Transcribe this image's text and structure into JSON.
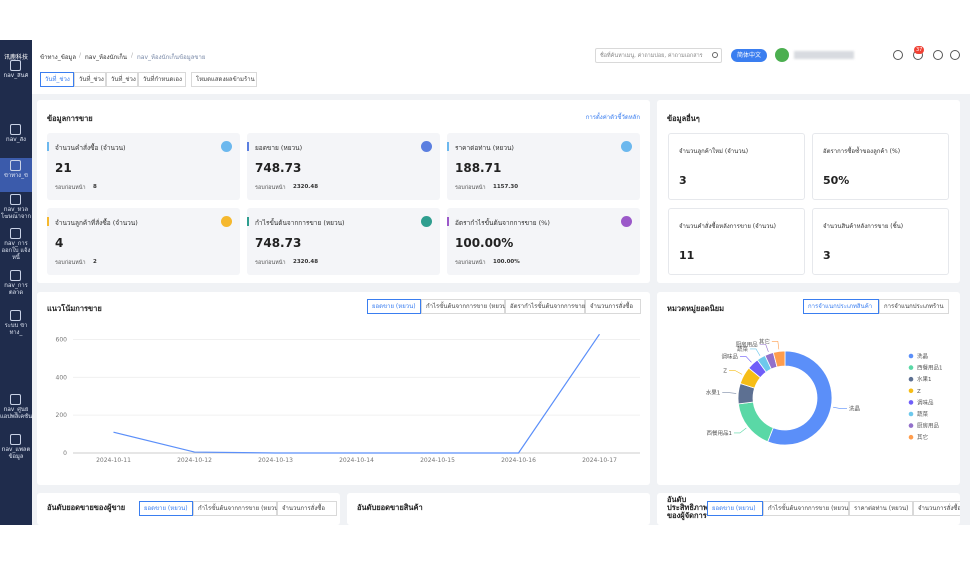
{
  "sidebar": {
    "logo": "讯鹿科技",
    "items": [
      "nav_สินค้",
      "nav_สั่ง",
      "ข้าทาง_ข้",
      "nav_หวล โฆษณาจาก",
      "nav_การ ออกใบ แจ้งหนี้",
      "nav_การ ตลาด",
      "ระบบ ข้าทาง_",
      "nav_ศูนย์ แอปพลิเคชัน",
      "nav_แพลต ข้อมูล"
    ]
  },
  "header": {
    "breadcrumb": [
      "ข้าทาง_ข้อมูล",
      "nav_ห้องนักเก็น",
      "nav_ห้องนักเก็นข้อมูลขาย"
    ],
    "search_placeholder": "ชื่อที่ค้นหาเมนู, ค่าถามบ่อย, ค่าถามเอกสาร",
    "language": "简体中文",
    "badge": "37"
  },
  "date_tabs": [
    "วันที่_ช่วง",
    "วันที่_ช่วง",
    "วันที่_ช่วง",
    "วันที่กำหนดเอง"
  ],
  "cross_store": "โหมดแสดงผลข้ามร้าน",
  "sales": {
    "title": "ข้อมูลการขาย",
    "link": "การตั้งค่าตัวชี้วัดหลัก",
    "prev_label": "รอบก่อนหน้า",
    "cards": [
      {
        "label": "จำนวนคำสั่งซื้อ (จำนวน)",
        "value": "21",
        "prev": "8",
        "color": "#6cb8ee"
      },
      {
        "label": "ยอดขาย (หยวน)",
        "value": "748.73",
        "prev": "2320.48",
        "color": "#5b7fe0"
      },
      {
        "label": "ราคาต่อท่าน (หยวน)",
        "value": "188.71",
        "prev": "1157.30",
        "color": "#6cb8ee"
      },
      {
        "label": "จำนวนลูกค้าที่สั่งซื้อ (จำนวน)",
        "value": "4",
        "prev": "2",
        "color": "#f5b82e"
      },
      {
        "label": "กำไรขั้นต้นจากการขาย (หยวน)",
        "value": "748.73",
        "prev": "2320.48",
        "color": "#2f9e8f"
      },
      {
        "label": "อัตรากำไรขั้นต้นจากการขาย (%)",
        "value": "100.00%",
        "prev": "100.00%",
        "color": "#9b59c9"
      }
    ]
  },
  "other": {
    "title": "ข้อมูลอื่นๆ",
    "cards": [
      {
        "label": "จำนวนลูกค้าใหม่ (จำนวน)",
        "value": "3"
      },
      {
        "label": "อัตราการซื้อซ้ำของลูกค้า (%)",
        "value": "50%"
      },
      {
        "label": "จำนวนคำสั่งซื้อหลังการขาย (จำนวน)",
        "value": "11"
      },
      {
        "label": "จำนวนสินค้าหลังการขาย (ชิ้น)",
        "value": "3"
      }
    ]
  },
  "trend_chart": {
    "type": "line",
    "title": "แนวโน้มการขาย",
    "tabs": [
      "ยอดขาย (หยวน)",
      "กำไรขั้นต้นจากการขาย (หยวน)",
      "อัตรากำไรขั้นต้นจากการขาย",
      "จำนวนการสั่งซื้อ"
    ],
    "categories": [
      "2024-10-11",
      "2024-10-12",
      "2024-10-13",
      "2024-10-14",
      "2024-10-15",
      "2024-10-16",
      "2024-10-17"
    ],
    "values": [
      110,
      5,
      0,
      0,
      0,
      0,
      628
    ],
    "color": "#5b8ff9",
    "ylim": [
      0,
      650
    ],
    "yticks": [
      0,
      200,
      400,
      600
    ],
    "grid": true
  },
  "category_chart": {
    "type": "pie",
    "title": "หมวดหมู่ยอดนิยม",
    "tabs": [
      "การจำแนกประเภทสินค้า",
      "การจำแนกประเภทร้าน"
    ],
    "categories": [
      "洗晶",
      "西餐用品1",
      "水果1",
      "Z",
      "调味品",
      "蔬菜",
      "厨房用品",
      "其它"
    ],
    "values": [
      56,
      17,
      7,
      6,
      4,
      3,
      3,
      4
    ],
    "colors": [
      "#5b8ff9",
      "#5ad8a6",
      "#5d7092",
      "#f6bd16",
      "#6f5ef9",
      "#6dc8ec",
      "#9270ca",
      "#ff9d4d"
    ]
  },
  "rankings": [
    {
      "title": "อันดับยอดขายของผู้ขาย",
      "tabs": [
        "ยอดขาย (หยวน)",
        "กำไรขั้นต้นจากการขาย (หยวน)",
        "จำนวนการสั่งซื้อ"
      ]
    },
    {
      "title": "อันดับยอดขายสินค้า",
      "tabs": []
    },
    {
      "title": "อันดับประสิทธิภาพของผู้จัดการ",
      "tabs": [
        "ยอดขาย (หยวน)",
        "กำไรขั้นต้นจากการขาย (หยวน)",
        "ราคาต่อท่าน (หยวน)",
        "จำนวนการสั่งซื้อ"
      ]
    }
  ]
}
